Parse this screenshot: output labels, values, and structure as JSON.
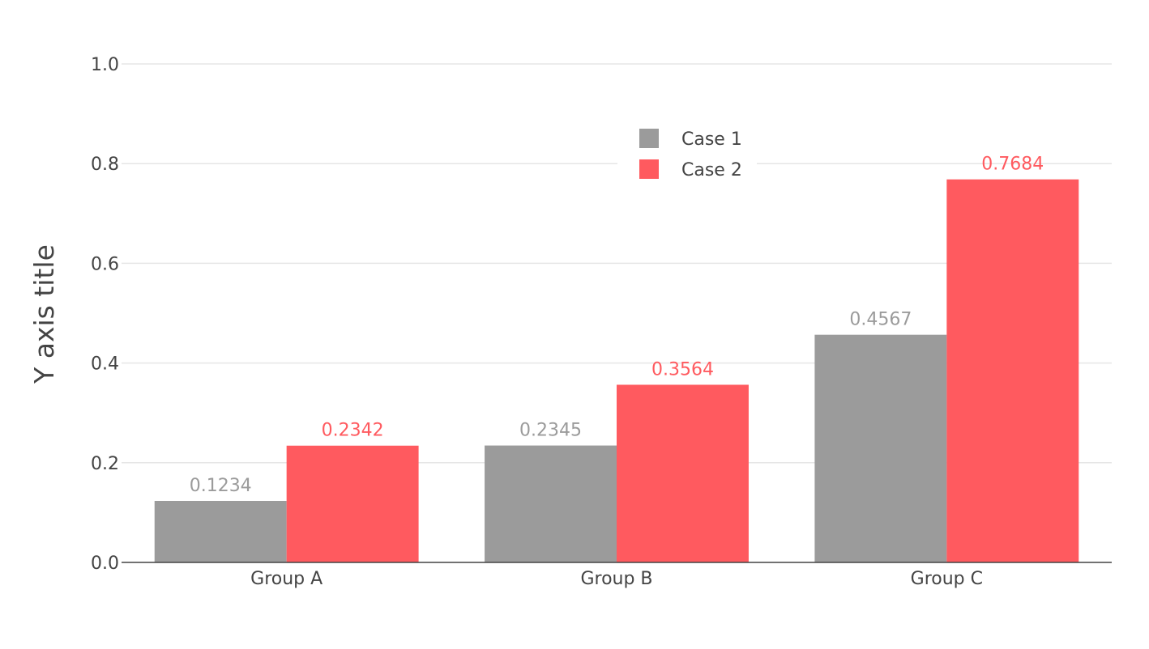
{
  "chart_data": {
    "type": "bar",
    "title": "",
    "xlabel": "",
    "ylabel": "Y axis title",
    "ylim": [
      0,
      1.0
    ],
    "yticks": [
      0,
      0.2,
      0.4,
      0.6,
      0.8,
      1.0
    ],
    "ytick_labels": [
      "0.0",
      "0.2",
      "0.4",
      "0.6",
      "0.8",
      "1.0"
    ],
    "categories": [
      "Group A",
      "Group B",
      "Group C"
    ],
    "series": [
      {
        "name": "Case 1",
        "color": "#9b9b9b",
        "label_color": "#9b9b9b",
        "values": [
          0.1234,
          0.2345,
          0.4567
        ],
        "labels": [
          "0.1234",
          "0.2345",
          "0.4567"
        ]
      },
      {
        "name": "Case 2",
        "color": "#ff5a5f",
        "label_color": "#ff5a5f",
        "values": [
          0.2342,
          0.3564,
          0.7684
        ],
        "labels": [
          "0.2342",
          "0.3564",
          "0.7684"
        ]
      }
    ],
    "grid": true,
    "legend": "top-center"
  }
}
